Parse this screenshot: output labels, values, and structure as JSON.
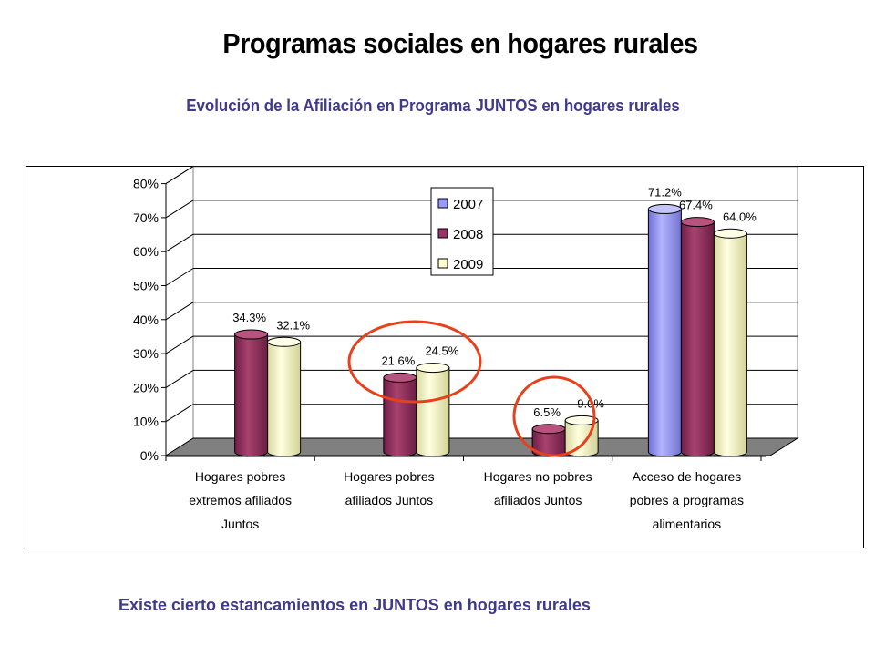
{
  "page": {
    "title": "Programas sociales en hogares rurales",
    "subtitle": "Evolución de la Afiliación en Programa JUNTOS en hogares rurales",
    "footer": "Existe cierto estancamientos en JUNTOS en hogares rurales"
  },
  "chart_data": {
    "type": "bar",
    "title": "",
    "categories": [
      [
        "Hogares pobres",
        "extremos afiliados",
        "Juntos"
      ],
      [
        "Hogares pobres",
        "afiliados Juntos"
      ],
      [
        "Hogares no pobres",
        "afiliados Juntos"
      ],
      [
        "Acceso de hogares",
        "pobres a programas",
        "alimentarios"
      ]
    ],
    "series": [
      {
        "name": "2007",
        "color": "#9999ff",
        "values": [
          null,
          null,
          null,
          71.2
        ],
        "labels": [
          "",
          "",
          "",
          "71.2%"
        ]
      },
      {
        "name": "2008",
        "color": "#993366",
        "values": [
          34.3,
          21.6,
          6.5,
          67.4
        ],
        "labels": [
          "34.3%",
          "21.6%",
          "6.5%",
          "67.4%"
        ]
      },
      {
        "name": "2009",
        "color": "#ffffcc",
        "values": [
          32.1,
          24.5,
          9.0,
          64.0
        ],
        "labels": [
          "32.1%",
          "24.5%",
          "9.0%",
          "64.0%"
        ]
      }
    ],
    "yticks": [
      "0%",
      "10%",
      "20%",
      "30%",
      "40%",
      "50%",
      "60%",
      "70%",
      "80%"
    ],
    "ylim": [
      0,
      80
    ],
    "grid": true,
    "legend": "top-center",
    "annotations": "red ellipses highlight categories 2 and 3"
  }
}
